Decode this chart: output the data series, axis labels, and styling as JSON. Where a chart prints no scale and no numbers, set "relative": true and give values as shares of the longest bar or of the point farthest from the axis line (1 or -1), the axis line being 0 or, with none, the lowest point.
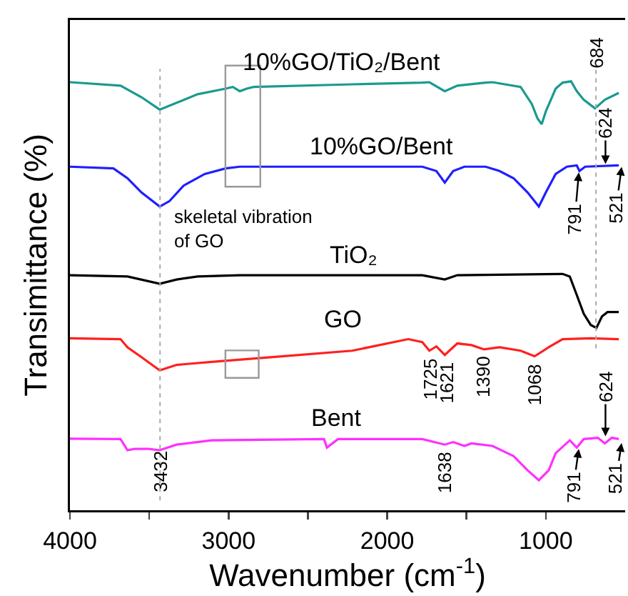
{
  "chart_data": {
    "type": "line",
    "relative": true,
    "xlabel": "Wavenumber (cm$^{-1}$)",
    "ylabel": "Transimittance (%)",
    "xlim": [
      4000,
      500
    ],
    "xticks": [
      4000,
      {
        "value": 3500,
        "label": null
      },
      3000,
      {
        "value": 2500,
        "label": null
      },
      2000,
      {
        "value": 1500,
        "label": null
      },
      1000
    ],
    "grid": false,
    "legend": false,
    "series": [
      {
        "name": "10%GO/TiO₂/Bent",
        "color": "#1a9a8f",
        "x": [
          4000,
          3681,
          3549,
          3434,
          3327,
          3195,
          3018,
          2973,
          2929,
          2885,
          2841,
          2221,
          1779,
          1734,
          1637,
          1558,
          1380,
          1336,
          1159,
          1088,
          1053,
          1026,
          1000,
          938,
          894,
          841,
          805,
          761,
          690,
          628,
          540
        ],
        "values": [
          0.998,
          0.99,
          0.963,
          0.934,
          0.95,
          0.97,
          0.983,
          0.987,
          0.977,
          0.983,
          0.987,
          0.993,
          0.997,
          0.998,
          0.977,
          0.99,
          0.997,
          0.998,
          0.987,
          0.947,
          0.914,
          0.9,
          0.93,
          0.983,
          0.997,
          1.0,
          0.977,
          0.957,
          0.937,
          0.957,
          0.973
        ]
      },
      {
        "name": "10%GO/Bent",
        "color": "#1f1fff",
        "x": [
          4000,
          3726,
          3637,
          3549,
          3434,
          3372,
          3283,
          3150,
          3018,
          2929,
          2841,
          1779,
          1690,
          1637,
          1584,
          1513,
          1380,
          1292,
          1203,
          1115,
          1044,
          1000,
          938,
          867,
          805,
          788,
          752,
          540
        ],
        "values": [
          0.801,
          0.797,
          0.774,
          0.741,
          0.708,
          0.721,
          0.757,
          0.784,
          0.797,
          0.801,
          0.801,
          0.801,
          0.791,
          0.764,
          0.791,
          0.801,
          0.801,
          0.791,
          0.774,
          0.741,
          0.708,
          0.741,
          0.784,
          0.801,
          0.804,
          0.791,
          0.801,
          0.804
        ]
      },
      {
        "name": "TiO₂",
        "color": "#000000",
        "x": [
          4000,
          3637,
          3434,
          3327,
          3195,
          2929,
          1779,
          1637,
          1558,
          894,
          849,
          805,
          761,
          717,
          681,
          646,
          611,
          540
        ],
        "values": [
          0.548,
          0.545,
          0.528,
          0.538,
          0.545,
          0.548,
          0.548,
          0.538,
          0.548,
          0.551,
          0.545,
          0.502,
          0.458,
          0.432,
          0.425,
          0.452,
          0.462,
          0.462
        ]
      },
      {
        "name": "GO",
        "color": "#ff2020",
        "x": [
          4000,
          3681,
          3637,
          3549,
          3434,
          3327,
          3106,
          2664,
          2221,
          1867,
          1779,
          1734,
          1690,
          1637,
          1558,
          1469,
          1389,
          1292,
          1159,
          1071,
          982,
          894,
          717,
          540
        ],
        "values": [
          0.401,
          0.399,
          0.38,
          0.357,
          0.326,
          0.339,
          0.346,
          0.359,
          0.372,
          0.399,
          0.392,
          0.372,
          0.382,
          0.362,
          0.389,
          0.385,
          0.375,
          0.38,
          0.372,
          0.359,
          0.38,
          0.399,
          0.401,
          0.399
        ]
      },
      {
        "name": "Bent",
        "color": "#ff30ff",
        "x": [
          4000,
          3681,
          3637,
          3593,
          3504,
          3434,
          3327,
          3106,
          2398,
          2380,
          2310,
          1779,
          1637,
          1584,
          1513,
          1469,
          1336,
          1203,
          1115,
          1044,
          982,
          938,
          849,
          805,
          761,
          672,
          628,
          584,
          540
        ],
        "values": [
          0.167,
          0.166,
          0.14,
          0.143,
          0.143,
          0.14,
          0.153,
          0.163,
          0.166,
          0.146,
          0.166,
          0.166,
          0.153,
          0.159,
          0.15,
          0.156,
          0.15,
          0.126,
          0.093,
          0.07,
          0.093,
          0.133,
          0.163,
          0.146,
          0.166,
          0.169,
          0.156,
          0.169,
          0.166
        ]
      }
    ],
    "ref_lines": [
      {
        "axis": "x",
        "value": 3432,
        "label": "3432",
        "color": "#aaaaaa",
        "line_style": "dotted"
      },
      {
        "axis": "x",
        "value": 684,
        "label": "684",
        "color": "#aaaaaa",
        "line_style": "dotted"
      }
    ],
    "annotations": [
      {
        "text": "skeletal vibration\nof GO",
        "x": 2950,
        "y": 0.79
      },
      {
        "text": "1725",
        "x": 1725,
        "y": 0.372
      },
      {
        "text": "1621",
        "x": 1621,
        "y": 0.362
      },
      {
        "text": "1390",
        "x": 1390,
        "y": 0.375
      },
      {
        "text": "1068",
        "x": 1068,
        "y": 0.359
      },
      {
        "text": "1638",
        "x": 1638,
        "y": 0.153
      },
      {
        "text": "791",
        "x": 791,
        "y": 0.791
      },
      {
        "text": "624",
        "x": 624,
        "y": 0.804
      },
      {
        "text": "521",
        "x": 521,
        "y": 0.804
      },
      {
        "text": "791",
        "x": 791,
        "y": 0.146
      },
      {
        "text": "624",
        "x": 624,
        "y": 0.169
      },
      {
        "text": "521",
        "x": 521,
        "y": 0.16
      }
    ]
  }
}
